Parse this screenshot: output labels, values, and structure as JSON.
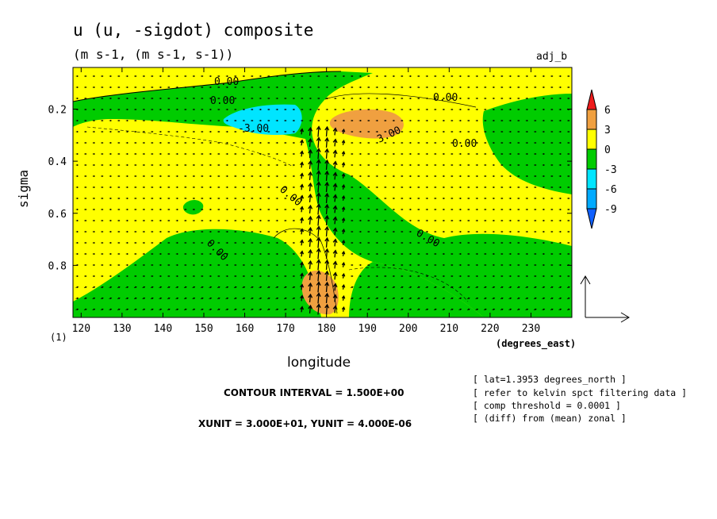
{
  "chart_data": {
    "type": "contour",
    "title": "u (u, -sigdot) composite",
    "subtitle": "(m s-1, (m s-1, s-1))",
    "tag": "adj_b",
    "xlabel": "longitude",
    "xunit_label": "(degrees_east)",
    "ylabel": "sigma",
    "page_number": "(1)",
    "xlim": [
      118,
      240
    ],
    "ylim": [
      1.0,
      0.04
    ],
    "x_ticks": [
      120,
      130,
      140,
      150,
      160,
      170,
      180,
      190,
      200,
      210,
      220,
      230
    ],
    "y_ticks": [
      0.2,
      0.4,
      0.6,
      0.8
    ],
    "y_tick_labels": [
      "0.2",
      "0.4",
      "0.6",
      "0.8"
    ],
    "contour_labels": [
      "0.00",
      "0.00",
      "0.00",
      "-3.00",
      "3.00",
      "0.00",
      "0.00",
      "0.00",
      "0.00"
    ],
    "colorbar": {
      "labels": [
        "6",
        "3",
        "0",
        "-3",
        "-6",
        "-9"
      ],
      "colors": [
        "#ee1c1c",
        "#f0a040",
        "#ffff00",
        "#00cc00",
        "#00e5ff",
        "#00aaff",
        "#1060ff"
      ]
    },
    "contour_interval": "CONTOUR INTERVAL = 1.500E+00",
    "vector_units": "XUNIT = 3.000E+01, YUNIT = 4.000E-06",
    "notes": [
      "[ lat=1.3953 degrees_north ]",
      "[ refer to kelvin spct filtering data ]",
      "[ comp threshold = 0.0001 ]",
      "[ (diff) from (mean) zonal ]"
    ],
    "colors": {
      "positive": "#ffff00",
      "negative": "#00cc00",
      "strong_positive": "#f0a040",
      "strong_negative": "#00e5ff"
    }
  }
}
